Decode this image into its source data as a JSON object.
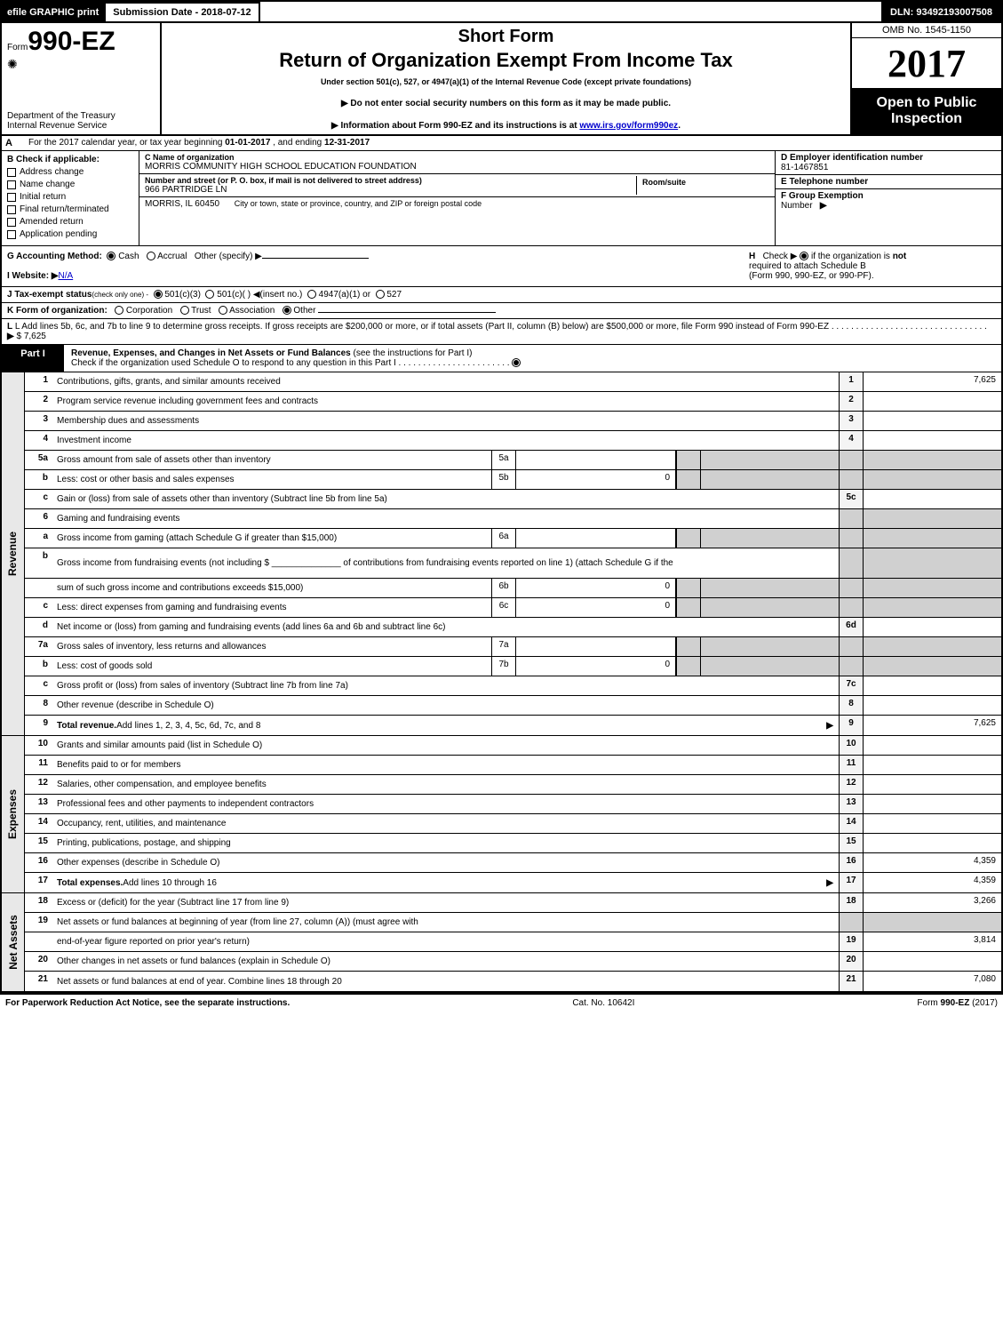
{
  "topbar": {
    "efile": "efile GRAPHIC print",
    "submission": "Submission Date - 2018-07-12",
    "dln": "DLN: 93492193007508"
  },
  "header": {
    "form_prefix": "Form",
    "form_number": "990-EZ",
    "dept1": "Department of the Treasury",
    "dept2": "Internal Revenue Service",
    "short_form": "Short Form",
    "title": "Return of Organization Exempt From Income Tax",
    "under": "Under section 501(c), 527, or 4947(a)(1) of the Internal Revenue Code (except private foundations)",
    "instr1": "▶ Do not enter social security numbers on this form as it may be made public.",
    "instr2_pre": "▶ Information about Form 990-EZ and its instructions is at ",
    "instr2_link": "www.irs.gov/form990ez",
    "instr2_post": ".",
    "omb": "OMB No. 1545-1150",
    "year": "2017",
    "open_pub_1": "Open to Public",
    "open_pub_2": "Inspection"
  },
  "row_a": {
    "letter": "A",
    "text_pre": "For the 2017 calendar year, or tax year beginning ",
    "begin": "01-01-2017",
    "mid": " , and ending ",
    "end": "12-31-2017"
  },
  "section_b": {
    "letter": "B",
    "header": "Check if applicable:",
    "items": [
      "Address change",
      "Name change",
      "Initial return",
      "Final return/terminated",
      "Amended return",
      "Application pending"
    ]
  },
  "section_c": {
    "name_lbl": "C Name of organization",
    "name_val": "MORRIS COMMUNITY HIGH SCHOOL EDUCATION FOUNDATION",
    "street_lbl": "Number and street (or P. O. box, if mail is not delivered to street address)",
    "street_val": "966 PARTRIDGE LN",
    "room_lbl": "Room/suite",
    "city_val": "MORRIS, IL  60450",
    "city_lbl": "City or town, state or province, country, and ZIP or foreign postal code"
  },
  "section_d": {
    "lbl": "D Employer identification number",
    "val": "81-1467851"
  },
  "section_e": {
    "lbl": "E Telephone number",
    "val": ""
  },
  "section_f": {
    "lbl": "F Group Exemption",
    "lbl2": "Number",
    "arrow": "▶"
  },
  "row_g": {
    "pre": "G Accounting Method:",
    "opt1": "Cash",
    "opt2": "Accrual",
    "opt3": "Other (specify) ▶"
  },
  "row_h": {
    "letter": "H",
    "text1": "Check ▶",
    "text2": "if the organization is",
    "text3": "not",
    "text4": "required to attach Schedule B",
    "text5": "(Form 990, 990-EZ, or 990-PF)."
  },
  "row_i": {
    "pre": "I Website: ▶",
    "val": "N/A"
  },
  "row_j": {
    "pre": "J Tax-exempt status",
    "small": "(check only one) -",
    "opt1": "501(c)(3)",
    "opt2": "501(c)(  )",
    "opt2b": "◀(insert no.)",
    "opt3": "4947(a)(1) or",
    "opt4": "527"
  },
  "row_k": {
    "pre": "K Form of organization:",
    "opt1": "Corporation",
    "opt2": "Trust",
    "opt3": "Association",
    "opt4": "Other"
  },
  "row_l": {
    "text": "L Add lines 5b, 6c, and 7b to line 9 to determine gross receipts. If gross receipts are $200,000 or more, or if total assets (Part II, column (B) below) are $500,000 or more, file Form 990 instead of Form 990-EZ",
    "dots": ". . . . . . . . . . . . . . . . . . . . . . . . . . . . . . . .",
    "arrow": "▶",
    "val": "$ 7,625"
  },
  "part1": {
    "label": "Part I",
    "title_bold": "Revenue, Expenses, and Changes in Net Assets or Fund Balances",
    "title_rest": " (see the instructions for Part I)",
    "check_text": "Check if the organization used Schedule O to respond to any question in this Part I"
  },
  "revenue": {
    "side": "Revenue",
    "rows": [
      {
        "n": "1",
        "d": "Contributions, gifts, grants, and similar amounts received",
        "rn": "1",
        "rv": "7,625"
      },
      {
        "n": "2",
        "d": "Program service revenue including government fees and contracts",
        "rn": "2",
        "rv": ""
      },
      {
        "n": "3",
        "d": "Membership dues and assessments",
        "rn": "3",
        "rv": ""
      },
      {
        "n": "4",
        "d": "Investment income",
        "rn": "4",
        "rv": ""
      },
      {
        "n": "5a",
        "d": "Gross amount from sale of assets other than inventory",
        "mn": "5a",
        "mv": "",
        "shade": true
      },
      {
        "n": "b",
        "d": "Less: cost or other basis and sales expenses",
        "mn": "5b",
        "mv": "0",
        "shade": true
      },
      {
        "n": "c",
        "d": "Gain or (loss) from sale of assets other than inventory (Subtract line 5b from line 5a)",
        "rn": "5c",
        "rv": ""
      },
      {
        "n": "6",
        "d": "Gaming and fundraising events",
        "shade_all": true
      },
      {
        "n": "a",
        "d": "Gross income from gaming (attach Schedule G if greater than $15,000)",
        "mn": "6a",
        "mv": "",
        "shade": true
      },
      {
        "n": "b",
        "d": "Gross income from fundraising events (not including $ ______________ of contributions from fundraising events reported on line 1) (attach Schedule G if the",
        "shade": true,
        "tall": true
      },
      {
        "n": "",
        "d": "sum of such gross income and contributions exceeds $15,000)",
        "mn": "6b",
        "mv": "0",
        "shade": true
      },
      {
        "n": "c",
        "d": "Less: direct expenses from gaming and fundraising events",
        "mn": "6c",
        "mv": "0",
        "shade": true
      },
      {
        "n": "d",
        "d": "Net income or (loss) from gaming and fundraising events (add lines 6a and 6b and subtract line 6c)",
        "rn": "6d",
        "rv": ""
      },
      {
        "n": "7a",
        "d": "Gross sales of inventory, less returns and allowances",
        "mn": "7a",
        "mv": "",
        "shade": true
      },
      {
        "n": "b",
        "d": "Less: cost of goods sold",
        "mn": "7b",
        "mv": "0",
        "shade": true
      },
      {
        "n": "c",
        "d": "Gross profit or (loss) from sales of inventory (Subtract line 7b from line 7a)",
        "rn": "7c",
        "rv": ""
      },
      {
        "n": "8",
        "d": "Other revenue (describe in Schedule O)",
        "rn": "8",
        "rv": ""
      },
      {
        "n": "9",
        "d_bold": "Total revenue.",
        "d": " Add lines 1, 2, 3, 4, 5c, 6d, 7c, and 8",
        "arrow": true,
        "rn": "9",
        "rv": "7,625"
      }
    ]
  },
  "expenses": {
    "side": "Expenses",
    "rows": [
      {
        "n": "10",
        "d": "Grants and similar amounts paid (list in Schedule O)",
        "rn": "10",
        "rv": ""
      },
      {
        "n": "11",
        "d": "Benefits paid to or for members",
        "rn": "11",
        "rv": ""
      },
      {
        "n": "12",
        "d": "Salaries, other compensation, and employee benefits",
        "rn": "12",
        "rv": ""
      },
      {
        "n": "13",
        "d": "Professional fees and other payments to independent contractors",
        "rn": "13",
        "rv": ""
      },
      {
        "n": "14",
        "d": "Occupancy, rent, utilities, and maintenance",
        "rn": "14",
        "rv": ""
      },
      {
        "n": "15",
        "d": "Printing, publications, postage, and shipping",
        "rn": "15",
        "rv": ""
      },
      {
        "n": "16",
        "d": "Other expenses (describe in Schedule O)",
        "rn": "16",
        "rv": "4,359"
      },
      {
        "n": "17",
        "d_bold": "Total expenses.",
        "d": " Add lines 10 through 16",
        "arrow": true,
        "rn": "17",
        "rv": "4,359"
      }
    ]
  },
  "netassets": {
    "side": "Net Assets",
    "rows": [
      {
        "n": "18",
        "d": "Excess or (deficit) for the year (Subtract line 17 from line 9)",
        "rn": "18",
        "rv": "3,266"
      },
      {
        "n": "19",
        "d": "Net assets or fund balances at beginning of year (from line 27, column (A)) (must agree with",
        "shade": true
      },
      {
        "n": "",
        "d": "end-of-year figure reported on prior year's return)",
        "rn": "19",
        "rv": "3,814"
      },
      {
        "n": "20",
        "d": "Other changes in net assets or fund balances (explain in Schedule O)",
        "rn": "20",
        "rv": ""
      },
      {
        "n": "21",
        "d": "Net assets or fund balances at end of year. Combine lines 18 through 20",
        "rn": "21",
        "rv": "7,080"
      }
    ]
  },
  "footer": {
    "left": "For Paperwork Reduction Act Notice, see the separate instructions.",
    "mid": "Cat. No. 10642I",
    "right_pre": "Form ",
    "right_bold": "990-EZ",
    "right_post": " (2017)"
  }
}
